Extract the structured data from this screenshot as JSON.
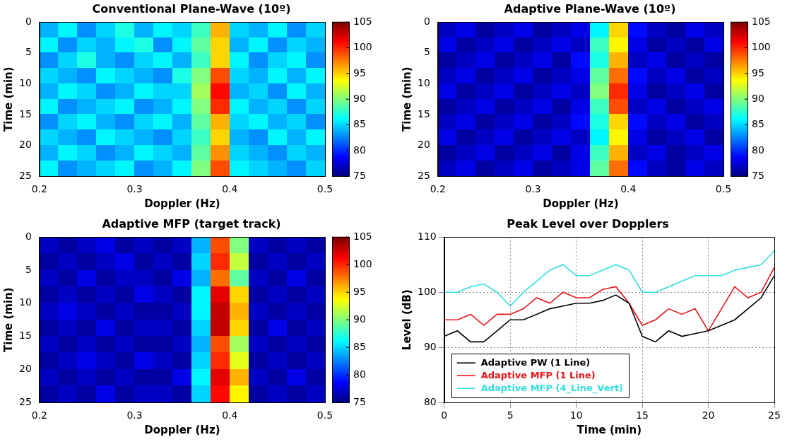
{
  "chart_data": [
    {
      "type": "heatmap",
      "title": "Conventional Plane-Wave (10º)",
      "x_label": "Doppler (Hz)",
      "y_label": "Time (min)",
      "x_edges": [
        0.2,
        0.22,
        0.24,
        0.26,
        0.28,
        0.3,
        0.32,
        0.34,
        0.36,
        0.38,
        0.4,
        0.42,
        0.44,
        0.46,
        0.48,
        0.5
      ],
      "y_edges": [
        0,
        2.5,
        5,
        7.5,
        10,
        12.5,
        15,
        17.5,
        20,
        22.5,
        25
      ],
      "cells": [
        [
          84,
          86,
          83,
          85,
          87,
          84,
          86,
          85,
          88,
          96,
          85,
          84,
          86,
          83,
          85
        ],
        [
          86,
          83,
          85,
          84,
          86,
          87,
          83,
          86,
          89,
          95,
          84,
          86,
          83,
          85,
          84
        ],
        [
          83,
          85,
          87,
          84,
          83,
          85,
          86,
          84,
          88,
          95,
          86,
          83,
          85,
          86,
          83
        ],
        [
          85,
          84,
          83,
          86,
          85,
          84,
          83,
          87,
          90,
          99,
          85,
          84,
          86,
          84,
          86
        ],
        [
          84,
          86,
          85,
          83,
          84,
          86,
          85,
          85,
          91,
          101,
          84,
          85,
          83,
          86,
          84
        ],
        [
          86,
          83,
          84,
          85,
          86,
          83,
          84,
          86,
          90,
          100,
          86,
          84,
          85,
          83,
          85
        ],
        [
          83,
          85,
          86,
          84,
          83,
          85,
          86,
          84,
          89,
          96,
          85,
          86,
          84,
          85,
          83
        ],
        [
          85,
          84,
          83,
          86,
          85,
          84,
          83,
          85,
          88,
          95,
          84,
          83,
          86,
          84,
          86
        ],
        [
          84,
          86,
          85,
          83,
          84,
          86,
          85,
          84,
          89,
          97,
          85,
          84,
          83,
          85,
          84
        ],
        [
          86,
          83,
          84,
          85,
          86,
          83,
          84,
          86,
          90,
          99,
          86,
          85,
          84,
          83,
          85
        ]
      ],
      "xlim": [
        0.2,
        0.5
      ],
      "ylim": [
        0,
        25
      ],
      "xticks": [
        0.2,
        0.3,
        0.4,
        0.5
      ],
      "yticks": [
        0,
        5,
        10,
        15,
        20,
        25
      ],
      "colorbar": {
        "range": [
          75,
          105
        ],
        "ticks": [
          75,
          80,
          85,
          90,
          95,
          100,
          105
        ]
      }
    },
    {
      "type": "heatmap",
      "title": "Adaptive Plane-Wave (10º)",
      "x_label": "Doppler (Hz)",
      "y_label": "Time (min)",
      "x_edges": [
        0.2,
        0.22,
        0.24,
        0.26,
        0.28,
        0.3,
        0.32,
        0.34,
        0.36,
        0.38,
        0.4,
        0.42,
        0.44,
        0.46,
        0.48,
        0.5
      ],
      "y_edges": [
        0,
        2.5,
        5,
        7.5,
        10,
        12.5,
        15,
        17.5,
        20,
        22.5,
        25
      ],
      "cells": [
        [
          77,
          78,
          76,
          77,
          78,
          76,
          77,
          78,
          86,
          95,
          79,
          77,
          76,
          78,
          77
        ],
        [
          78,
          76,
          77,
          78,
          76,
          77,
          78,
          77,
          88,
          94,
          78,
          76,
          77,
          76,
          78
        ],
        [
          76,
          77,
          78,
          76,
          77,
          78,
          76,
          79,
          87,
          96,
          77,
          78,
          76,
          77,
          76
        ],
        [
          77,
          78,
          76,
          77,
          78,
          76,
          77,
          78,
          89,
          98,
          79,
          77,
          78,
          76,
          77
        ],
        [
          78,
          76,
          77,
          78,
          76,
          77,
          78,
          77,
          90,
          100,
          78,
          76,
          77,
          78,
          76
        ],
        [
          76,
          77,
          78,
          76,
          77,
          78,
          76,
          78,
          88,
          99,
          77,
          78,
          76,
          77,
          78
        ],
        [
          77,
          78,
          76,
          77,
          78,
          76,
          77,
          79,
          87,
          95,
          79,
          77,
          78,
          76,
          77
        ],
        [
          78,
          76,
          77,
          78,
          76,
          77,
          78,
          77,
          86,
          94,
          78,
          76,
          77,
          78,
          76
        ],
        [
          76,
          77,
          78,
          76,
          77,
          78,
          76,
          78,
          88,
          96,
          77,
          78,
          76,
          77,
          78
        ],
        [
          77,
          78,
          76,
          77,
          78,
          76,
          77,
          78,
          89,
          98,
          79,
          77,
          76,
          78,
          77
        ]
      ],
      "xlim": [
        0.2,
        0.5
      ],
      "ylim": [
        0,
        25
      ],
      "xticks": [
        0.2,
        0.3,
        0.4,
        0.5
      ],
      "yticks": [
        0,
        5,
        10,
        15,
        20,
        25
      ],
      "colorbar": {
        "range": [
          75,
          105
        ],
        "ticks": [
          75,
          80,
          85,
          90,
          95,
          100,
          105
        ]
      }
    },
    {
      "type": "heatmap",
      "title": "Adaptive MFP (target track)",
      "x_label": "Doppler (Hz)",
      "y_label": "Time (min)",
      "x_edges": [
        0.2,
        0.22,
        0.24,
        0.26,
        0.28,
        0.3,
        0.32,
        0.34,
        0.36,
        0.38,
        0.4,
        0.42,
        0.44,
        0.46,
        0.48,
        0.5
      ],
      "y_edges": [
        0,
        2.5,
        5,
        7.5,
        10,
        12.5,
        15,
        17.5,
        20,
        22.5,
        25
      ],
      "cells": [
        [
          77,
          76,
          77,
          78,
          76,
          77,
          76,
          77,
          84,
          99,
          90,
          77,
          76,
          77,
          76
        ],
        [
          76,
          77,
          76,
          77,
          78,
          76,
          77,
          76,
          85,
          100,
          92,
          76,
          77,
          76,
          77
        ],
        [
          77,
          76,
          78,
          76,
          77,
          77,
          76,
          78,
          84,
          98,
          89,
          77,
          76,
          78,
          76
        ],
        [
          76,
          77,
          76,
          77,
          76,
          78,
          77,
          76,
          86,
          102,
          95,
          76,
          77,
          76,
          77
        ],
        [
          77,
          78,
          77,
          76,
          77,
          76,
          76,
          77,
          86,
          103,
          96,
          77,
          76,
          77,
          76
        ],
        [
          76,
          77,
          76,
          78,
          76,
          77,
          77,
          76,
          85,
          103,
          95,
          76,
          78,
          76,
          77
        ],
        [
          77,
          76,
          77,
          76,
          77,
          76,
          76,
          77,
          84,
          99,
          91,
          77,
          76,
          77,
          76
        ],
        [
          76,
          77,
          78,
          77,
          76,
          78,
          77,
          76,
          85,
          100,
          93,
          76,
          77,
          76,
          77
        ],
        [
          77,
          76,
          77,
          76,
          77,
          76,
          76,
          78,
          86,
          102,
          96,
          77,
          76,
          78,
          76
        ],
        [
          76,
          77,
          76,
          78,
          76,
          77,
          77,
          76,
          85,
          101,
          94,
          76,
          77,
          76,
          77
        ]
      ],
      "xlim": [
        0.2,
        0.5
      ],
      "ylim": [
        0,
        25
      ],
      "xticks": [
        0.2,
        0.3,
        0.4,
        0.5
      ],
      "yticks": [
        0,
        5,
        10,
        15,
        20,
        25
      ],
      "colorbar": {
        "range": [
          75,
          105
        ],
        "ticks": [
          75,
          80,
          85,
          90,
          95,
          100,
          105
        ]
      }
    },
    {
      "type": "line",
      "title": "Peak Level over Dopplers",
      "x_label": "Time (min)",
      "y_label": "Level (dB)",
      "x": [
        0,
        1,
        2,
        3,
        4,
        5,
        6,
        7,
        8,
        9,
        10,
        11,
        12,
        13,
        14,
        15,
        16,
        17,
        18,
        19,
        20,
        21,
        22,
        23,
        24,
        25
      ],
      "series": [
        {
          "name": "Adaptive PW (1 Line)",
          "color": "#000000",
          "values": [
            92,
            93,
            91,
            91,
            93,
            95,
            95,
            96,
            97,
            97.5,
            98,
            98,
            98.5,
            99.5,
            98,
            92,
            91,
            93,
            92,
            92.5,
            93,
            94,
            95,
            97,
            99,
            103
          ]
        },
        {
          "name": "Adaptive MFP (1 Line)",
          "color": "#e8141a",
          "values": [
            95,
            95,
            96,
            94,
            96,
            96,
            97,
            99,
            98,
            100,
            99,
            99,
            100.5,
            101,
            98,
            94,
            95,
            97,
            96,
            97,
            93,
            97,
            101,
            99,
            100,
            104.5
          ]
        },
        {
          "name": "Adaptive MFP (4_Line_Vert)",
          "color": "#33dede",
          "values": [
            100,
            100,
            101,
            101.5,
            100,
            97.5,
            100,
            102,
            104,
            105,
            103,
            103,
            104,
            105,
            104,
            100,
            100,
            101,
            102,
            103,
            103,
            103,
            104,
            104.5,
            105,
            107.5
          ]
        }
      ],
      "xlim": [
        0,
        25
      ],
      "ylim": [
        80,
        110
      ],
      "xticks": [
        0,
        5,
        10,
        15,
        20,
        25
      ],
      "yticks": [
        80,
        90,
        100,
        110
      ],
      "grid": true,
      "legend": "lower left"
    }
  ]
}
